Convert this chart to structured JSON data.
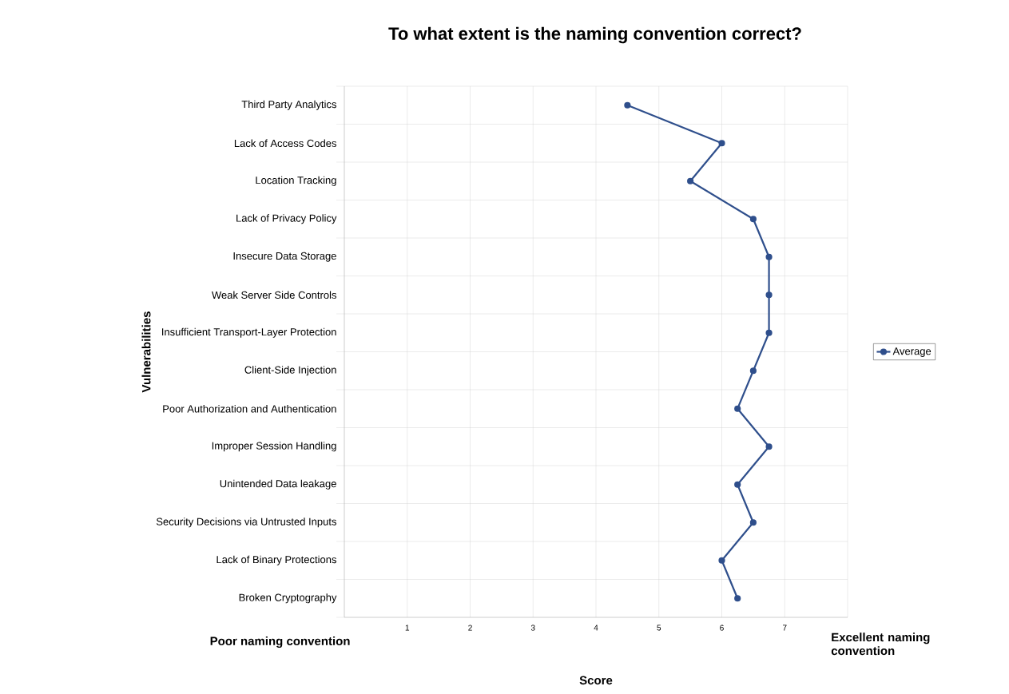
{
  "chart_data": {
    "type": "line",
    "orientation": "horizontal",
    "title": "To what extent is the naming convention correct?",
    "xlabel": "Score",
    "ylabel": "Vulnerabilities",
    "categories": [
      "Third Party Analytics",
      "Lack of Access Codes",
      "Location Tracking",
      "Lack of Privacy Policy",
      "Insecure Data Storage",
      "Weak Server Side Controls",
      "Insufficient Transport-Layer Protection",
      "Client-Side Injection",
      "Poor Authorization and Authentication",
      "Improper Session Handling",
      "Unintended Data leakage",
      "Security Decisions via Untrusted Inputs",
      "Lack of Binary Protections",
      "Broken Cryptography"
    ],
    "series": [
      {
        "name": "Average",
        "color": "#2f4f8c",
        "values": [
          4.5,
          6.0,
          5.5,
          6.5,
          6.75,
          6.75,
          6.75,
          6.5,
          6.25,
          6.75,
          6.25,
          6.5,
          6.0,
          6.25
        ]
      }
    ],
    "xlim": [
      0,
      8
    ],
    "xticks": [
      {
        "value": 0,
        "label": null
      },
      1,
      2,
      3,
      4,
      5,
      6,
      7,
      {
        "value": 8,
        "label": null
      }
    ],
    "annotations": [
      "Poor naming convention",
      "Excellent naming convention"
    ],
    "grid": true,
    "legend": "right",
    "marker": "circle",
    "line_style": "solid"
  }
}
